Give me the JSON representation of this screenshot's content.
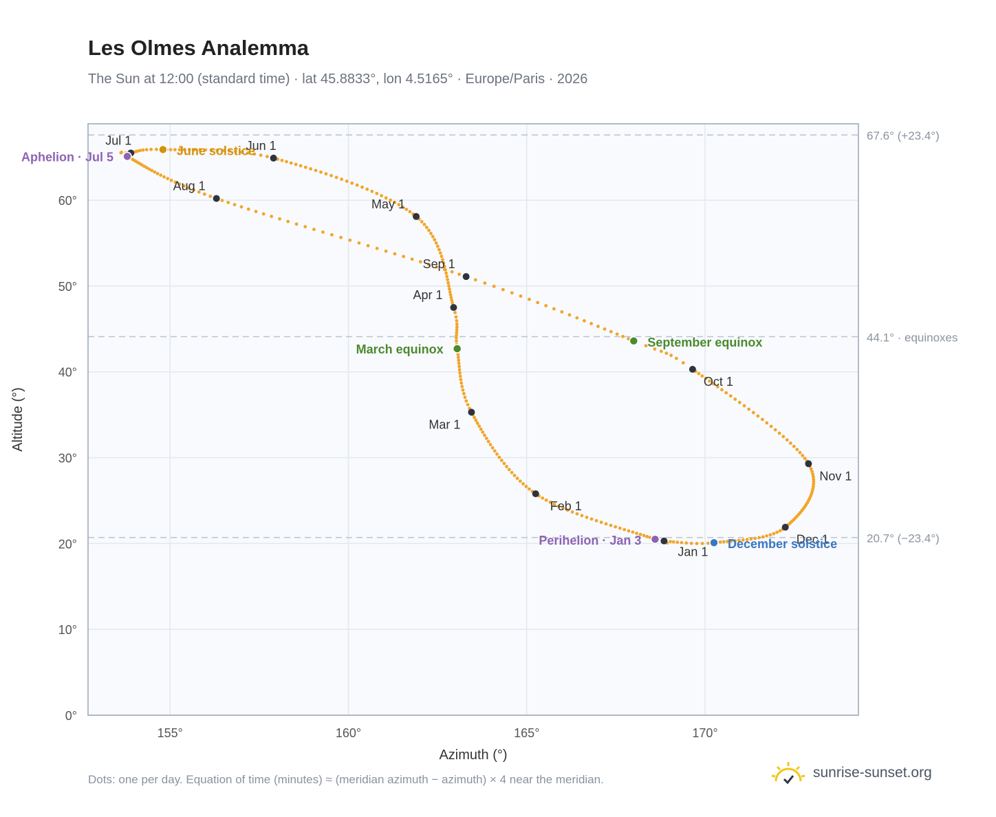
{
  "title": "Les Olmes Analemma",
  "subtitle": "The Sun at 12:00 (standard time) · lat 45.8833°, lon 4.5165° · Europe/Paris · 2026",
  "footnote": "Dots: one per day. Equation of time (minutes) ≈ (meridian azimuth − azimuth) × 4 near the meridian.",
  "brand": {
    "name": "sunrise-sunset.org",
    "icon": "sun-logo-icon"
  },
  "colors": {
    "curve": "#f2a52a",
    "month_marker": "#2d3440",
    "aphelion_perihelion": "#8e63b3",
    "june_solstice": "#d4920f",
    "equinox": "#4b8a2e",
    "december_solstice": "#3a77c2",
    "plot_bg": "#f8fafd",
    "grid": "#e3e8ee",
    "reference_line": "#b9c3cf"
  },
  "chart_data": {
    "type": "scatter",
    "xlabel": "Azimuth (°)",
    "ylabel": "Altitude (°)",
    "xlim": [
      152.7,
      174.3
    ],
    "ylim": [
      0,
      68.9
    ],
    "x_ticks": [
      155,
      160,
      165,
      170
    ],
    "x_tick_labels": [
      "155°",
      "160°",
      "165°",
      "170°"
    ],
    "y_ticks": [
      0,
      10,
      20,
      30,
      40,
      50,
      60
    ],
    "y_tick_labels": [
      "0°",
      "10°",
      "20°",
      "30°",
      "40°",
      "50°",
      "60°"
    ],
    "grid": true,
    "reference_lines": [
      {
        "altitude": 67.6,
        "label": "67.6° (+23.4°)"
      },
      {
        "altitude": 44.1,
        "label": "44.1° · equinoxes"
      },
      {
        "altitude": 20.7,
        "label": "20.7° (−23.4°)"
      }
    ],
    "daily_path_anchors": [
      {
        "date": "Jan 1",
        "az": 168.85,
        "alt": 20.3
      },
      {
        "date": "Jan 3",
        "az": 168.6,
        "alt": 20.5
      },
      {
        "date": "Feb 1",
        "az": 165.25,
        "alt": 25.8
      },
      {
        "date": "Mar 1",
        "az": 163.45,
        "alt": 35.3
      },
      {
        "date": "Mar 20",
        "az": 163.05,
        "alt": 42.7
      },
      {
        "date": "Apr 1",
        "az": 162.95,
        "alt": 47.5
      },
      {
        "date": "May 1",
        "az": 161.9,
        "alt": 58.1
      },
      {
        "date": "Jun 1",
        "az": 157.9,
        "alt": 64.9
      },
      {
        "date": "Jun 21",
        "az": 154.8,
        "alt": 65.9
      },
      {
        "date": "Jul 1",
        "az": 153.9,
        "alt": 65.5
      },
      {
        "date": "Jul 5",
        "az": 153.8,
        "alt": 65.1
      },
      {
        "date": "Aug 1",
        "az": 156.3,
        "alt": 60.2
      },
      {
        "date": "Sep 1",
        "az": 163.3,
        "alt": 51.1
      },
      {
        "date": "Sep 23",
        "az": 168.0,
        "alt": 43.6
      },
      {
        "date": "Oct 1",
        "az": 169.65,
        "alt": 40.3
      },
      {
        "date": "Nov 1",
        "az": 172.9,
        "alt": 29.3
      },
      {
        "date": "Dec 1",
        "az": 172.25,
        "alt": 21.9
      },
      {
        "date": "Dec 21",
        "az": 170.25,
        "alt": 20.1
      },
      {
        "date": "Dec 31",
        "az": 168.95,
        "alt": 20.25
      }
    ],
    "month_markers": [
      {
        "label": "Jan 1",
        "az": 168.85,
        "alt": 20.3
      },
      {
        "label": "Feb 1",
        "az": 165.25,
        "alt": 25.8
      },
      {
        "label": "Mar 1",
        "az": 163.45,
        "alt": 35.3
      },
      {
        "label": "Apr 1",
        "az": 162.95,
        "alt": 47.5
      },
      {
        "label": "May 1",
        "az": 161.9,
        "alt": 58.1
      },
      {
        "label": "Jun 1",
        "az": 157.9,
        "alt": 64.9
      },
      {
        "label": "Jul 1",
        "az": 153.9,
        "alt": 65.5
      },
      {
        "label": "Aug 1",
        "az": 156.3,
        "alt": 60.2
      },
      {
        "label": "Sep 1",
        "az": 163.3,
        "alt": 51.1
      },
      {
        "label": "Oct 1",
        "az": 169.65,
        "alt": 40.3
      },
      {
        "label": "Nov 1",
        "az": 172.9,
        "alt": 29.3
      },
      {
        "label": "Dec 1",
        "az": 172.25,
        "alt": 21.9
      }
    ],
    "events": [
      {
        "label": "Aphelion · Jul 5",
        "az": 153.8,
        "alt": 65.1,
        "kind": "aphelion"
      },
      {
        "label": "June solstice",
        "az": 154.8,
        "alt": 65.9,
        "kind": "june_solstice"
      },
      {
        "label": "March equinox",
        "az": 163.05,
        "alt": 42.7,
        "kind": "equinox"
      },
      {
        "label": "September equinox",
        "az": 168.0,
        "alt": 43.6,
        "kind": "equinox"
      },
      {
        "label": "Perihelion · Jan 3",
        "az": 168.6,
        "alt": 20.5,
        "kind": "perihelion"
      },
      {
        "label": "December solstice",
        "az": 170.25,
        "alt": 20.1,
        "kind": "december_solstice"
      }
    ]
  }
}
